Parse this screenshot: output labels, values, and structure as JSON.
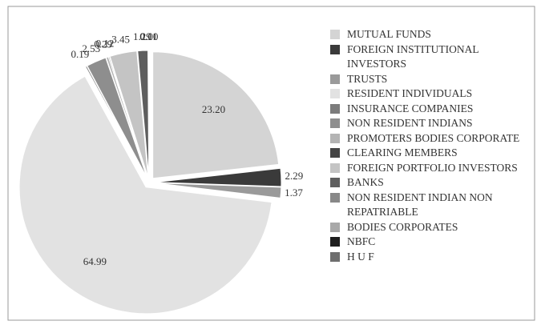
{
  "chart_data": {
    "type": "pie",
    "categories": [
      "MUTUAL FUNDS",
      "FOREIGN INSTITUTIONAL INVESTORS",
      "TRUSTS",
      "RESIDENT INDIVIDUALS",
      "INSURANCE COMPANIES",
      "NON RESIDENT INDIANS",
      "PROMOTERS BODIES CORPORATE",
      "CLEARING MEMBERS",
      "FOREIGN PORTFOLIO INVESTORS",
      "BANKS",
      "NON RESIDENT INDIAN NON REPATRIABLE",
      "BODIES CORPORATES",
      "NBFC",
      "H U F"
    ],
    "values": [
      23.2,
      2.29,
      1.37,
      64.99,
      0.19,
      2.53,
      0.29,
      0.12,
      3.45,
      1.29,
      0.11,
      0.0,
      0,
      0
    ],
    "value_labels": [
      "23.20",
      "2.29",
      "1.37",
      "64.99",
      "0.19",
      "2.53",
      "0.29",
      "0.12",
      "3.45",
      "1.29",
      "0.11",
      "0.00",
      null,
      null
    ],
    "colors": [
      "#d4d4d4",
      "#3a3a3a",
      "#9a9a9a",
      "#e2e2e2",
      "#7c7c7c",
      "#8e8e8e",
      "#b4b4b4",
      "#444444",
      "#c4c4c4",
      "#5e5e5e",
      "#888888",
      "#a8a8a8",
      "#1e1e1e",
      "#6e6e6e"
    ]
  }
}
